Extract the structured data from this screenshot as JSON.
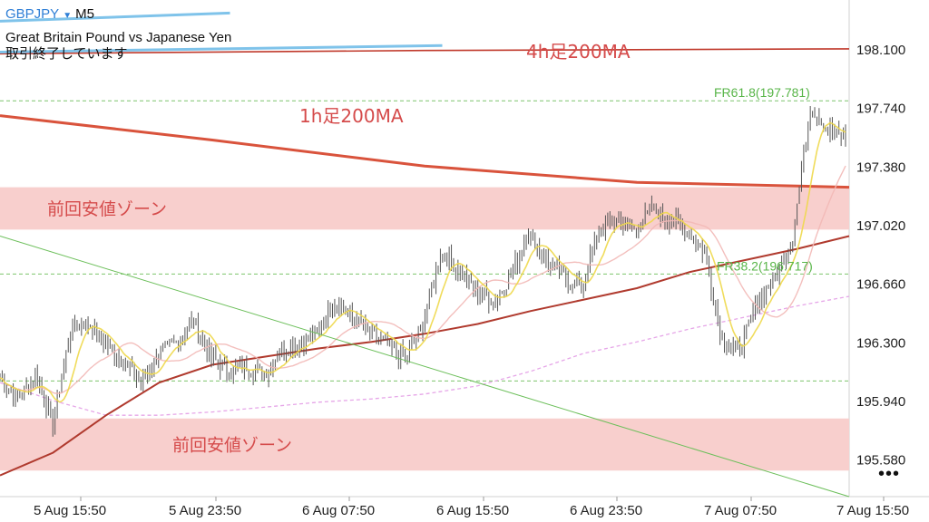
{
  "header": {
    "symbol": "GBPJPY",
    "timeframe": "M5",
    "description": "Great Britain Pound vs Japanese Yen",
    "status": "取引終了しています"
  },
  "more_icon": "ellipsis-icon",
  "more_label": "•••",
  "chart_data": {
    "type": "candlestick",
    "price_axis": {
      "ticks": [
        198.1,
        197.74,
        197.38,
        197.02,
        196.66,
        196.3,
        195.94,
        195.58
      ],
      "tick_labels": [
        "198.100",
        "197.740",
        "197.380",
        "197.020",
        "196.660",
        "196.300",
        "195.940",
        "195.580"
      ],
      "range": [
        195.35,
        198.4
      ]
    },
    "time_axis": {
      "labels": [
        "5 Aug 15:50",
        "5 Aug 23:50",
        "6 Aug 07:50",
        "6 Aug 15:50",
        "6 Aug 23:50",
        "7 Aug 07:50",
        "7 Aug 15:50"
      ]
    },
    "grid": false,
    "zones": [
      {
        "label": "前回安値ゾーン",
        "from": 196.99,
        "to": 197.25,
        "color": "#f8cfcd"
      },
      {
        "label": "前回安値ゾーン",
        "from": 195.51,
        "to": 195.83,
        "color": "#f8cfcd"
      }
    ],
    "fib_levels": [
      {
        "label": "FR61.8(197.781)",
        "value": 197.781
      },
      {
        "label": "FR38.2(196.717)",
        "value": 196.717
      },
      {
        "label": "",
        "value": 196.06
      }
    ],
    "annotations": [
      {
        "text": "4h足200MA",
        "color": "#d54b4b"
      },
      {
        "text": "1h足200MA",
        "color": "#d54b4b"
      }
    ],
    "ma_lines": [
      {
        "name": "4h足200MA",
        "color": "#c0392b",
        "values": [
          198.07,
          198.09,
          198.1
        ]
      },
      {
        "name": "1h足200MA",
        "color": "#d9533c",
        "values": [
          197.69,
          197.54,
          197.38,
          197.28,
          197.25
        ]
      },
      {
        "name": "",
        "color": "#b03a2e",
        "values": [
          195.48,
          195.62,
          195.85,
          196.05,
          196.16,
          196.21,
          196.26,
          196.3,
          196.35,
          196.41,
          196.49,
          196.56,
          196.63,
          196.73,
          196.8,
          196.87,
          196.95
        ]
      },
      {
        "name": "",
        "color": "#e09aa0",
        "values": [
          196.05,
          195.94,
          195.85,
          195.85,
          195.87,
          195.9,
          195.93,
          195.95,
          195.98,
          196.03,
          196.12,
          196.23,
          196.3,
          196.38,
          196.45,
          196.52,
          196.58
        ]
      }
    ],
    "price_path": [
      196.08,
      195.95,
      196.1,
      195.8,
      196.38,
      196.42,
      196.28,
      196.18,
      196.05,
      196.22,
      196.3,
      196.43,
      196.2,
      196.12,
      196.15,
      196.1,
      196.25,
      196.3,
      196.35,
      196.55,
      196.45,
      196.35,
      196.28,
      196.2,
      196.4,
      196.85,
      196.75,
      196.62,
      196.55,
      196.7,
      196.98,
      196.8,
      196.7,
      196.63,
      196.98,
      197.05,
      196.98,
      197.12,
      197.05,
      196.98,
      196.85,
      196.3,
      196.25,
      196.55,
      196.7,
      196.95,
      197.75,
      197.6,
      197.55
    ],
    "trendlines": [
      {
        "color": "#6cbf5a",
        "from": [
          0,
          196.95
        ],
        "to": [
          48,
          195.35
        ]
      },
      {
        "color": "#7fc3ea",
        "from": [
          0,
          198.08
        ],
        "to": [
          25,
          198.12
        ]
      },
      {
        "color": "#7fc3ea",
        "from": [
          0,
          198.27
        ],
        "to": [
          13,
          198.32
        ]
      }
    ]
  }
}
